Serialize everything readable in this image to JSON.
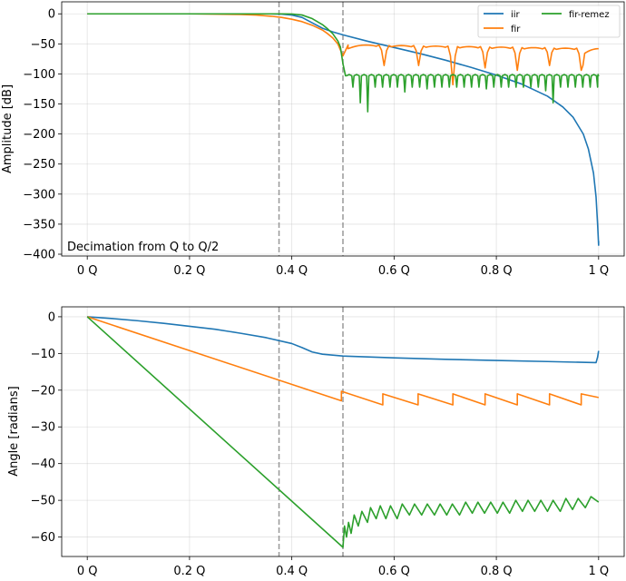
{
  "chart_data": [
    {
      "type": "line",
      "ylabel": "Amplitude [dB]",
      "xlim": [
        -0.05,
        1.05
      ],
      "ylim": [
        -403,
        20
      ],
      "yticks": [
        0,
        -50,
        -100,
        -150,
        -200,
        -250,
        -300,
        -350,
        -400
      ],
      "xticks": [
        0,
        0.2,
        0.4,
        0.6,
        0.8,
        1.0
      ],
      "xtick_labels": [
        "0 Q",
        "0.2 Q",
        "0.4 Q",
        "0.6 Q",
        "0.8 Q",
        "1 Q"
      ],
      "grid": true,
      "legend_placement": "top-right",
      "annotation": "Decimation from Q to Q/2",
      "vlines": [
        0.375,
        0.5
      ],
      "series": [
        {
          "name": "iir",
          "color": "#1f77b4",
          "points": [
            [
              0,
              0
            ],
            [
              0.1,
              0
            ],
            [
              0.2,
              0
            ],
            [
              0.3,
              0
            ],
            [
              0.35,
              0
            ],
            [
              0.38,
              -0.5
            ],
            [
              0.4,
              -2
            ],
            [
              0.42,
              -6
            ],
            [
              0.44,
              -15
            ],
            [
              0.46,
              -24
            ],
            [
              0.48,
              -30
            ],
            [
              0.5,
              -35
            ],
            [
              0.55,
              -46
            ],
            [
              0.6,
              -56
            ],
            [
              0.65,
              -66
            ],
            [
              0.7,
              -77
            ],
            [
              0.75,
              -89
            ],
            [
              0.8,
              -102
            ],
            [
              0.85,
              -117
            ],
            [
              0.9,
              -137
            ],
            [
              0.93,
              -155
            ],
            [
              0.95,
              -172
            ],
            [
              0.97,
              -200
            ],
            [
              0.98,
              -225
            ],
            [
              0.99,
              -265
            ],
            [
              0.995,
              -305
            ],
            [
              0.998,
              -350
            ],
            [
              1.0,
              -385
            ],
            [
              1.0,
              -378
            ]
          ]
        },
        {
          "name": "fir",
          "color": "#ff7f0e",
          "points": [
            [
              0,
              0
            ],
            [
              0.1,
              0
            ],
            [
              0.2,
              0
            ],
            [
              0.25,
              -0.5
            ],
            [
              0.3,
              -1
            ],
            [
              0.33,
              -2
            ],
            [
              0.36,
              -4
            ],
            [
              0.38,
              -6
            ],
            [
              0.4,
              -9
            ],
            [
              0.42,
              -13
            ],
            [
              0.44,
              -19
            ],
            [
              0.46,
              -27
            ],
            [
              0.47,
              -33
            ],
            [
              0.48,
              -40
            ],
            [
              0.49,
              -50
            ],
            [
              0.5,
              -70
            ],
            [
              0.51,
              -52
            ]
          ],
          "stopband": {
            "start": 0.51,
            "nulls": [
              0.5805,
              0.648,
              0.715,
              0.778,
              0.841,
              0.904,
              0.966
            ],
            "null_depths": [
              -86,
              -86,
              -118,
              -90,
              -94,
              -86,
              -94
            ],
            "peak": -52,
            "peak_right": -58,
            "end": 1.0
          }
        },
        {
          "name": "fir-remez",
          "color": "#2ca02c",
          "points": [
            [
              0,
              0
            ],
            [
              0.1,
              0
            ],
            [
              0.2,
              0
            ],
            [
              0.3,
              0
            ],
            [
              0.38,
              0
            ],
            [
              0.4,
              -0.3
            ],
            [
              0.42,
              -2
            ],
            [
              0.44,
              -8
            ],
            [
              0.46,
              -18
            ],
            [
              0.47,
              -25
            ],
            [
              0.48,
              -33
            ],
            [
              0.49,
              -45
            ],
            [
              0.495,
              -55
            ],
            [
              0.5,
              -83
            ],
            [
              0.505,
              -103
            ]
          ],
          "stopband": {
            "start": 0.505,
            "lobe_width": 0.0145,
            "peak": -101,
            "nulls_deep": [
              [
                0.533,
                -148
              ],
              [
                0.553,
                -163
              ],
              [
                0.615,
                -130
              ],
              [
                0.67,
                -125
              ],
              [
                0.78,
                -125
              ],
              [
                0.9,
                -128
              ],
              [
                0.915,
                -148
              ]
            ],
            "null_depth": -122,
            "end": 1.0
          }
        }
      ]
    },
    {
      "type": "line",
      "ylabel": "Angle [radians]",
      "xlim": [
        -0.05,
        1.05
      ],
      "ylim": [
        -65.3,
        2.7
      ],
      "yticks": [
        0,
        -10,
        -20,
        -30,
        -40,
        -50,
        -60
      ],
      "xticks": [
        0,
        0.2,
        0.4,
        0.6,
        0.8,
        1.0
      ],
      "xtick_labels": [
        "0 Q",
        "0.2 Q",
        "0.4 Q",
        "0.6 Q",
        "0.8 Q",
        "1 Q"
      ],
      "grid": true,
      "vlines": [
        0.375,
        0.5
      ],
      "series": [
        {
          "name": "iir",
          "color": "#1f77b4",
          "points": [
            [
              0,
              0
            ],
            [
              0.05,
              -0.5
            ],
            [
              0.1,
              -1.1
            ],
            [
              0.15,
              -1.8
            ],
            [
              0.2,
              -2.6
            ],
            [
              0.25,
              -3.4
            ],
            [
              0.3,
              -4.5
            ],
            [
              0.35,
              -5.7
            ],
            [
              0.4,
              -7.3
            ],
            [
              0.42,
              -8.4
            ],
            [
              0.44,
              -9.6
            ],
            [
              0.46,
              -10.2
            ],
            [
              0.5,
              -10.7
            ],
            [
              0.6,
              -11.2
            ],
            [
              0.7,
              -11.6
            ],
            [
              0.8,
              -11.9
            ],
            [
              0.9,
              -12.2
            ],
            [
              0.995,
              -12.5
            ],
            [
              0.998,
              -11
            ],
            [
              1.0,
              -9.3
            ]
          ]
        },
        {
          "name": "fir",
          "color": "#ff7f0e",
          "points": [
            [
              0,
              0
            ],
            [
              0.497,
              -22.9
            ],
            [
              0.497,
              -20.3
            ],
            [
              0.578,
              -24
            ],
            [
              0.578,
              -21
            ],
            [
              0.647,
              -24
            ],
            [
              0.647,
              -21
            ],
            [
              0.715,
              -24
            ],
            [
              0.715,
              -21
            ],
            [
              0.778,
              -24
            ],
            [
              0.778,
              -21
            ],
            [
              0.841,
              -24
            ],
            [
              0.841,
              -21
            ],
            [
              0.904,
              -24
            ],
            [
              0.904,
              -21
            ],
            [
              0.966,
              -24
            ],
            [
              0.966,
              -21
            ],
            [
              1.0,
              -22
            ]
          ]
        },
        {
          "name": "fir-remez",
          "color": "#2ca02c",
          "points": [
            [
              0,
              0
            ],
            [
              0.5,
              -62.8
            ],
            [
              0.503,
              -57
            ],
            [
              0.507,
              -60
            ],
            [
              0.511,
              -56
            ],
            [
              0.516,
              -59
            ],
            [
              0.522,
              -54
            ],
            [
              0.53,
              -57
            ],
            [
              0.537,
              -53
            ],
            [
              0.548,
              -56
            ],
            [
              0.554,
              -52
            ],
            [
              0.565,
              -55
            ],
            [
              0.573,
              -51.5
            ],
            [
              0.584,
              -55
            ],
            [
              0.593,
              -51.5
            ],
            [
              0.606,
              -55
            ],
            [
              0.616,
              -51
            ],
            [
              0.63,
              -54
            ],
            [
              0.64,
              -51
            ],
            [
              0.654,
              -54
            ],
            [
              0.665,
              -51
            ],
            [
              0.679,
              -54
            ],
            [
              0.69,
              -51
            ],
            [
              0.703,
              -54
            ],
            [
              0.714,
              -51
            ],
            [
              0.728,
              -54
            ],
            [
              0.74,
              -50.5
            ],
            [
              0.753,
              -53.5
            ],
            [
              0.764,
              -50.5
            ],
            [
              0.777,
              -53.5
            ],
            [
              0.789,
              -50.5
            ],
            [
              0.802,
              -53.5
            ],
            [
              0.813,
              -50.5
            ],
            [
              0.826,
              -53.5
            ],
            [
              0.838,
              -50
            ],
            [
              0.851,
              -53
            ],
            [
              0.862,
              -50
            ],
            [
              0.875,
              -53
            ],
            [
              0.887,
              -50
            ],
            [
              0.9,
              -53
            ],
            [
              0.911,
              -50
            ],
            [
              0.925,
              -53
            ],
            [
              0.936,
              -49.5
            ],
            [
              0.949,
              -52.5
            ],
            [
              0.96,
              -49.5
            ],
            [
              0.974,
              -52
            ],
            [
              0.985,
              -49
            ],
            [
              1.0,
              -50.5
            ]
          ]
        }
      ]
    }
  ],
  "legend": {
    "entries": [
      "iir",
      "fir",
      "fir-remez"
    ]
  }
}
